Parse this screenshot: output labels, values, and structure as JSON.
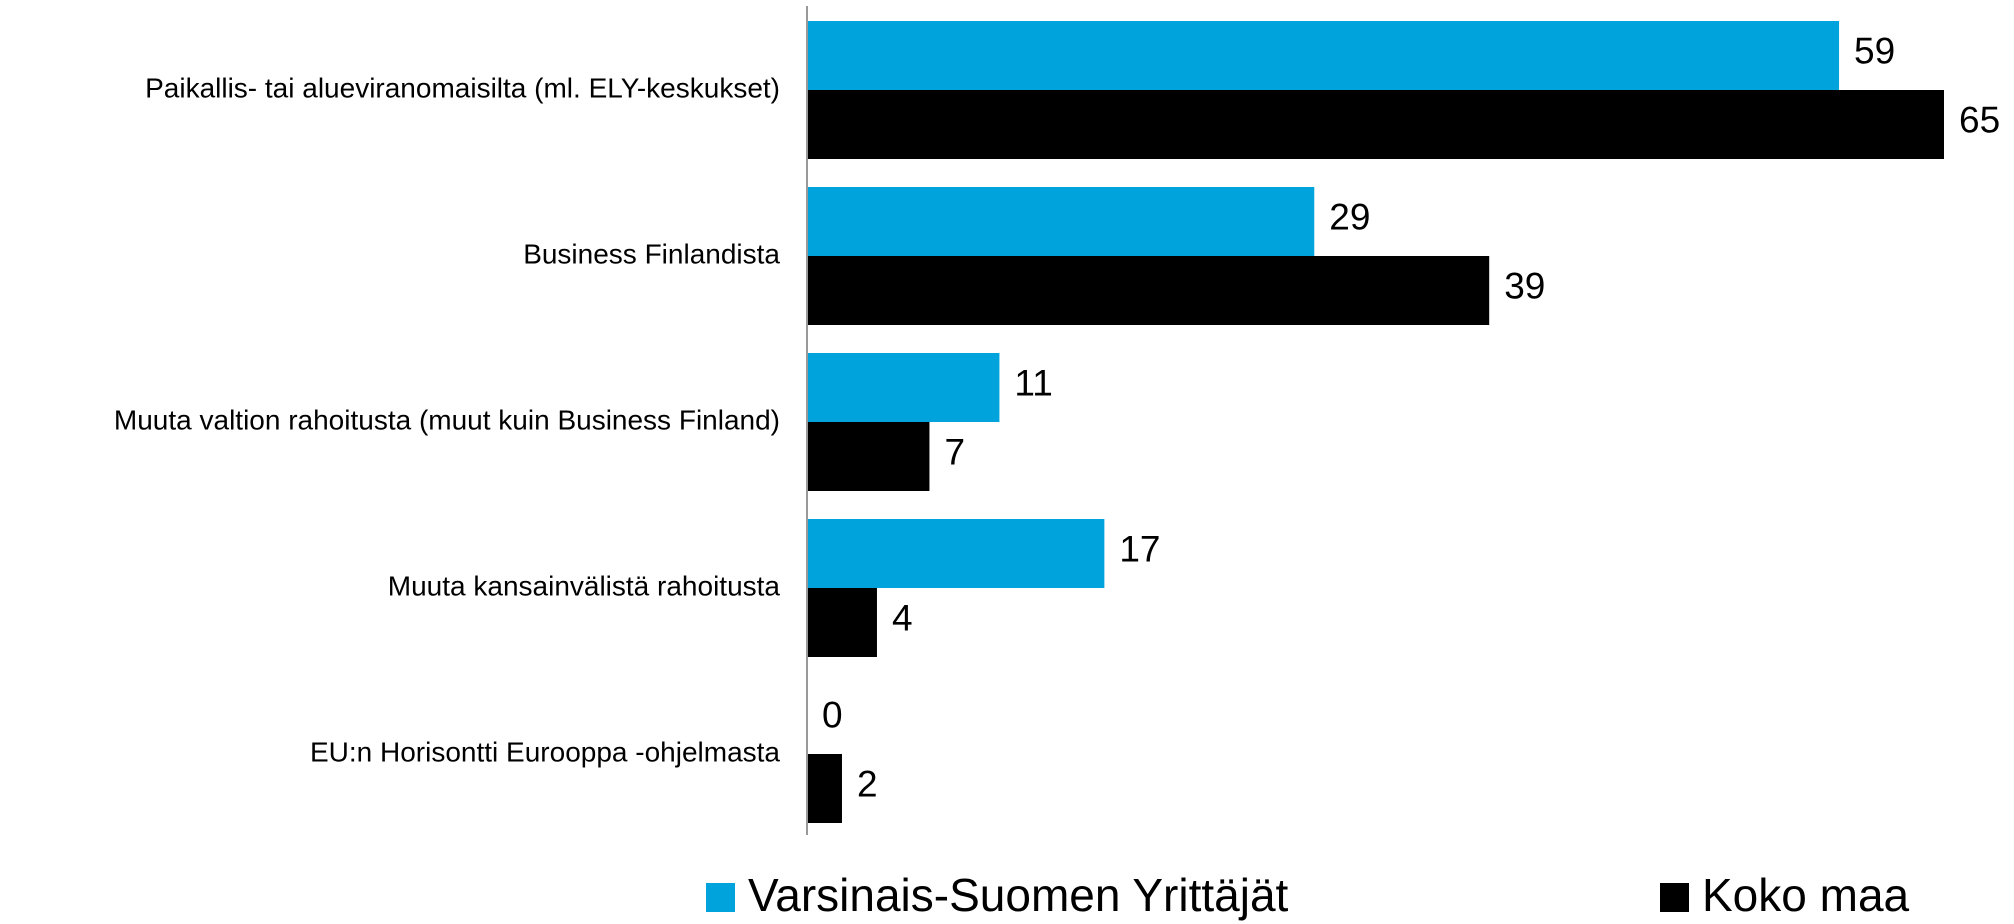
{
  "chart_data": {
    "type": "bar",
    "orientation": "horizontal",
    "categories": [
      "Paikallis- tai alueviranomaisilta (ml. ELY-keskukset)",
      "Business Finlandista",
      "Muuta valtion rahoitusta (muut kuin Business Finland)",
      "Muuta kansainvälistä rahoitusta",
      "EU:n Horisontti Eurooppa -ohjelmasta"
    ],
    "series": [
      {
        "name": "Varsinais-Suomen Yrittäjät",
        "color": "#00a3db",
        "values": [
          59,
          29,
          11,
          17,
          0
        ]
      },
      {
        "name": "Koko maa",
        "color": "#000000",
        "values": [
          65,
          39,
          7,
          4,
          2
        ]
      }
    ],
    "xlim": [
      0,
      65
    ],
    "legend": "bottom"
  }
}
